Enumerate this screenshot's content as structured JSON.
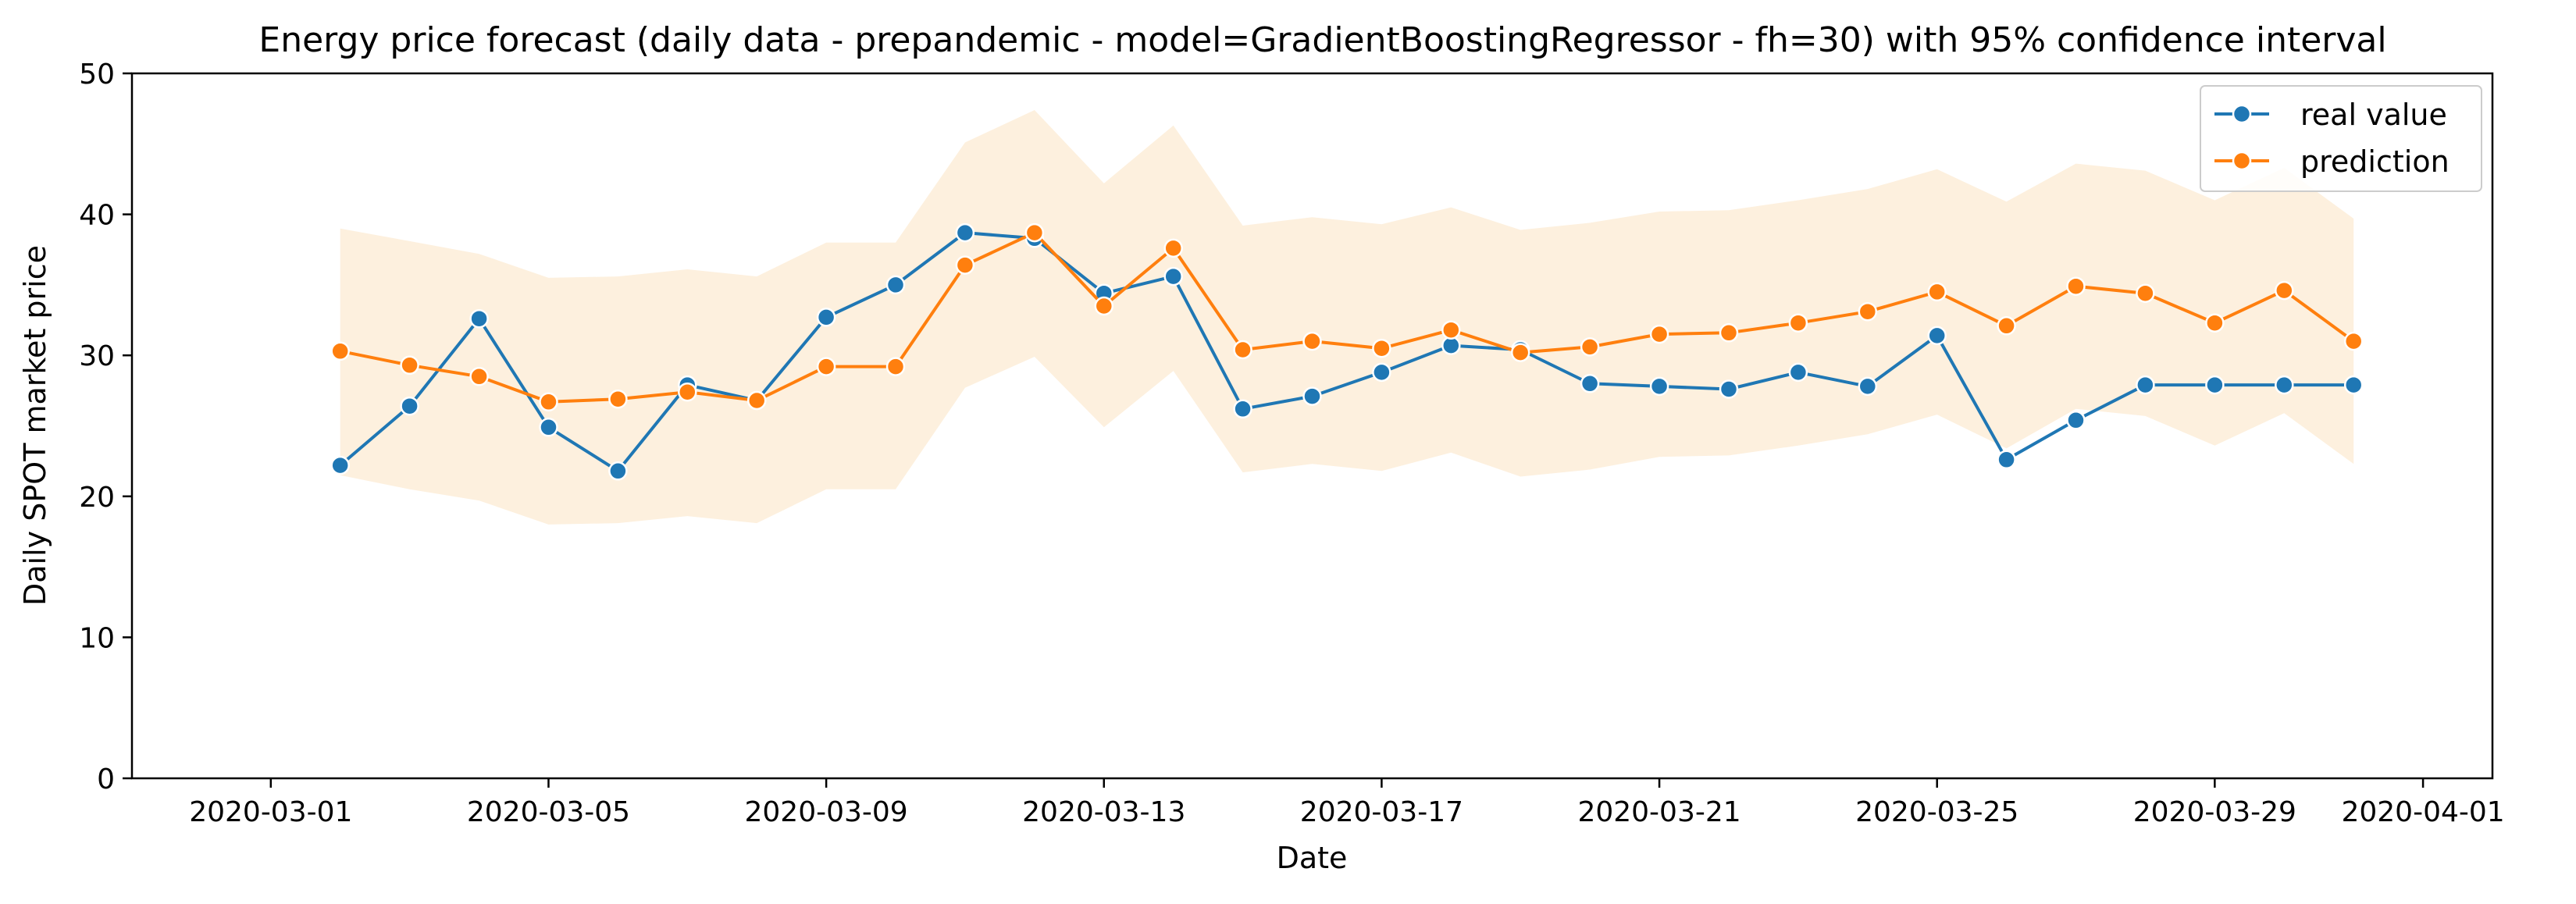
{
  "chart_data": {
    "type": "line",
    "title": "Energy price forecast (daily data - prepandemic - model=GradientBoostingRegressor - fh=30) with 95% confidence interval",
    "xlabel": "Date",
    "ylabel": "Daily SPOT market price",
    "ylim": [
      0,
      50
    ],
    "xlim": [
      "2020-02-28",
      "2020-04-02"
    ],
    "yticks": [
      0,
      10,
      20,
      30,
      40,
      50
    ],
    "xticks": [
      "2020-03-01",
      "2020-03-05",
      "2020-03-09",
      "2020-03-13",
      "2020-03-17",
      "2020-03-21",
      "2020-03-25",
      "2020-03-29",
      "2020-04-01"
    ],
    "x": [
      "2020-03-02",
      "2020-03-03",
      "2020-03-04",
      "2020-03-05",
      "2020-03-06",
      "2020-03-07",
      "2020-03-08",
      "2020-03-09",
      "2020-03-10",
      "2020-03-11",
      "2020-03-12",
      "2020-03-13",
      "2020-03-14",
      "2020-03-15",
      "2020-03-16",
      "2020-03-17",
      "2020-03-18",
      "2020-03-19",
      "2020-03-20",
      "2020-03-21",
      "2020-03-22",
      "2020-03-23",
      "2020-03-24",
      "2020-03-25",
      "2020-03-26",
      "2020-03-27",
      "2020-03-28",
      "2020-03-29",
      "2020-03-30",
      "2020-03-31"
    ],
    "series": [
      {
        "name": "real value",
        "color": "#1f77b4",
        "values": [
          22.2,
          26.4,
          32.6,
          24.9,
          21.8,
          27.9,
          26.8,
          32.7,
          35.0,
          38.7,
          38.3,
          34.4,
          35.6,
          26.2,
          27.1,
          28.8,
          30.7,
          30.4,
          28.0,
          27.8,
          27.6,
          28.8,
          27.8,
          31.4,
          22.6,
          25.4,
          27.9,
          27.9,
          27.9,
          27.9
        ]
      },
      {
        "name": "prediction",
        "color": "#ff7f0e",
        "values": [
          30.3,
          29.3,
          28.5,
          26.7,
          26.9,
          27.4,
          26.8,
          29.2,
          29.2,
          36.4,
          38.7,
          33.5,
          37.6,
          30.4,
          31.0,
          30.5,
          31.8,
          30.2,
          30.6,
          31.5,
          31.6,
          32.3,
          33.1,
          34.5,
          32.1,
          34.9,
          34.4,
          32.3,
          34.6,
          31.0
        ]
      }
    ],
    "confidence_interval": {
      "level": "95%",
      "color": "#fdf0de",
      "lower": [
        21.5,
        20.5,
        19.7,
        18.0,
        18.1,
        18.6,
        18.1,
        20.5,
        20.5,
        27.7,
        29.9,
        24.9,
        28.9,
        21.7,
        22.3,
        21.8,
        23.1,
        21.4,
        21.9,
        22.8,
        22.9,
        23.6,
        24.4,
        25.8,
        23.4,
        26.2,
        25.7,
        23.6,
        25.9,
        22.3
      ],
      "upper": [
        39.0,
        38.1,
        37.2,
        35.5,
        35.6,
        36.1,
        35.6,
        38.0,
        38.0,
        45.1,
        47.4,
        42.2,
        46.3,
        39.2,
        39.8,
        39.3,
        40.5,
        38.9,
        39.4,
        40.2,
        40.3,
        41.0,
        41.8,
        43.2,
        40.9,
        43.6,
        43.1,
        41.0,
        43.3,
        39.7
      ]
    },
    "legend": {
      "position": "top-right",
      "entries": [
        "real value",
        "prediction"
      ]
    },
    "grid": false
  }
}
